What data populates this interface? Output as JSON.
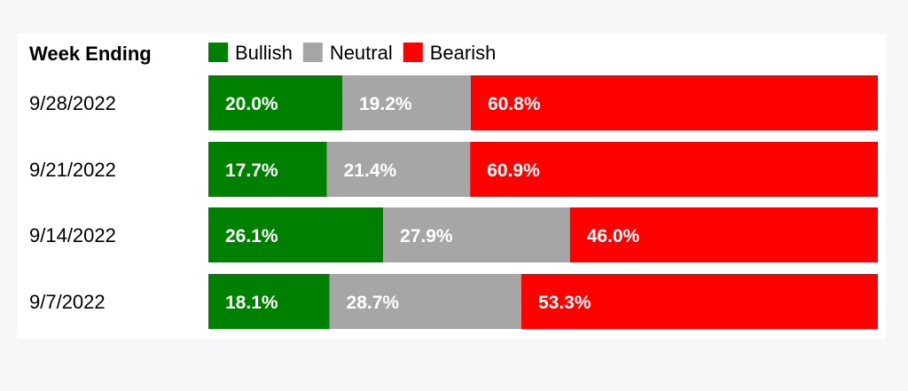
{
  "chart_data": {
    "type": "bar",
    "stacked": true,
    "orientation": "horizontal",
    "header_label": "Week Ending",
    "categories": [
      "9/28/2022",
      "9/21/2022",
      "9/14/2022",
      "9/7/2022"
    ],
    "series": [
      {
        "name": "Bullish",
        "color": "#008000",
        "values": [
          20.0,
          17.7,
          26.1,
          18.1
        ],
        "labels": [
          "20.0%",
          "17.7%",
          "26.1%",
          "18.1%"
        ]
      },
      {
        "name": "Neutral",
        "color": "#a6a6a6",
        "values": [
          19.2,
          21.4,
          27.9,
          28.7
        ],
        "labels": [
          "19.2%",
          "21.4%",
          "27.9%",
          "28.7%"
        ]
      },
      {
        "name": "Bearish",
        "color": "#ff0000",
        "values": [
          60.8,
          60.9,
          46.0,
          53.3
        ],
        "labels": [
          "60.8%",
          "60.9%",
          "46.0%",
          "53.3%"
        ]
      }
    ],
    "legend": "top"
  }
}
